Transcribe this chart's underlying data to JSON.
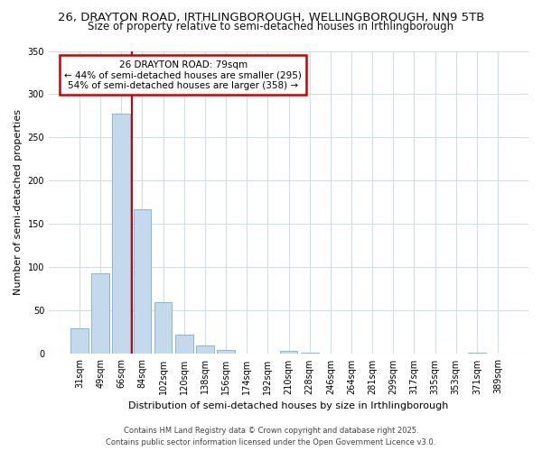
{
  "title1": "26, DRAYTON ROAD, IRTHLINGBOROUGH, WELLINGBOROUGH, NN9 5TB",
  "title2": "Size of property relative to semi-detached houses in Irthlingborough",
  "xlabel": "Distribution of semi-detached houses by size in Irthlingborough",
  "ylabel": "Number of semi-detached properties",
  "categories": [
    "31sqm",
    "49sqm",
    "66sqm",
    "84sqm",
    "102sqm",
    "120sqm",
    "138sqm",
    "156sqm",
    "174sqm",
    "192sqm",
    "210sqm",
    "228sqm",
    "246sqm",
    "264sqm",
    "281sqm",
    "299sqm",
    "317sqm",
    "335sqm",
    "353sqm",
    "371sqm",
    "389sqm"
  ],
  "values": [
    30,
    93,
    278,
    167,
    60,
    22,
    10,
    5,
    0,
    0,
    4,
    2,
    0,
    0,
    0,
    0,
    0,
    0,
    0,
    2,
    0
  ],
  "bar_color": "#c5d9ed",
  "bar_edge_color": "#7aafd4",
  "vline_x": 2.5,
  "annotation_title": "26 DRAYTON ROAD: 79sqm",
  "annotation_line1": "← 44% of semi-detached houses are smaller (295)",
  "annotation_line2": "54% of semi-detached houses are larger (358) →",
  "annotation_box_color": "#ffffff",
  "annotation_box_edge": "#cc0000",
  "vline_color": "#cc0000",
  "ylim": [
    0,
    350
  ],
  "yticks": [
    0,
    50,
    100,
    150,
    200,
    250,
    300,
    350
  ],
  "footer1": "Contains HM Land Registry data © Crown copyright and database right 2025.",
  "footer2": "Contains public sector information licensed under the Open Government Licence v3.0.",
  "bg_color": "#ffffff",
  "plot_bg_color": "#ffffff",
  "grid_color": "#d0dce8",
  "title_fontsize": 9.5,
  "subtitle_fontsize": 8.5,
  "axis_label_fontsize": 8,
  "tick_fontsize": 7,
  "footer_fontsize": 6
}
